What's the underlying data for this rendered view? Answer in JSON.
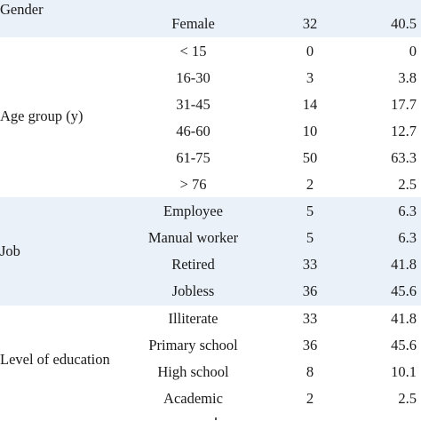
{
  "table": {
    "groups": [
      {
        "label": "Gender",
        "rows": [
          {
            "sub": "Female",
            "n": "32",
            "pct": "40.5"
          }
        ]
      },
      {
        "label": "Age group (y)",
        "rows": [
          {
            "sub": "< 15",
            "n": "0",
            "pct": "0"
          },
          {
            "sub": "16-30",
            "n": "3",
            "pct": "3.8"
          },
          {
            "sub": "31-45",
            "n": "14",
            "pct": "17.7"
          },
          {
            "sub": "46-60",
            "n": "10",
            "pct": "12.7"
          },
          {
            "sub": "61-75",
            "n": "50",
            "pct": "63.3"
          },
          {
            "sub": "> 76",
            "n": "2",
            "pct": "2.5"
          }
        ]
      },
      {
        "label": "Job",
        "rows": [
          {
            "sub": "Employee",
            "n": "5",
            "pct": "6.3"
          },
          {
            "sub": "Manual worker",
            "n": "5",
            "pct": "6.3"
          },
          {
            "sub": "Retired",
            "n": "33",
            "pct": "41.8"
          },
          {
            "sub": "Jobless",
            "n": "36",
            "pct": "45.6"
          }
        ]
      },
      {
        "label": "Level of education",
        "rows": [
          {
            "sub": "Illiterate",
            "n": "33",
            "pct": "41.8"
          },
          {
            "sub": "Primary school",
            "n": "36",
            "pct": "45.6"
          },
          {
            "sub": "High school",
            "n": "8",
            "pct": "10.1"
          },
          {
            "sub": "Academic",
            "n": "2",
            "pct": "2.5"
          }
        ]
      }
    ]
  }
}
